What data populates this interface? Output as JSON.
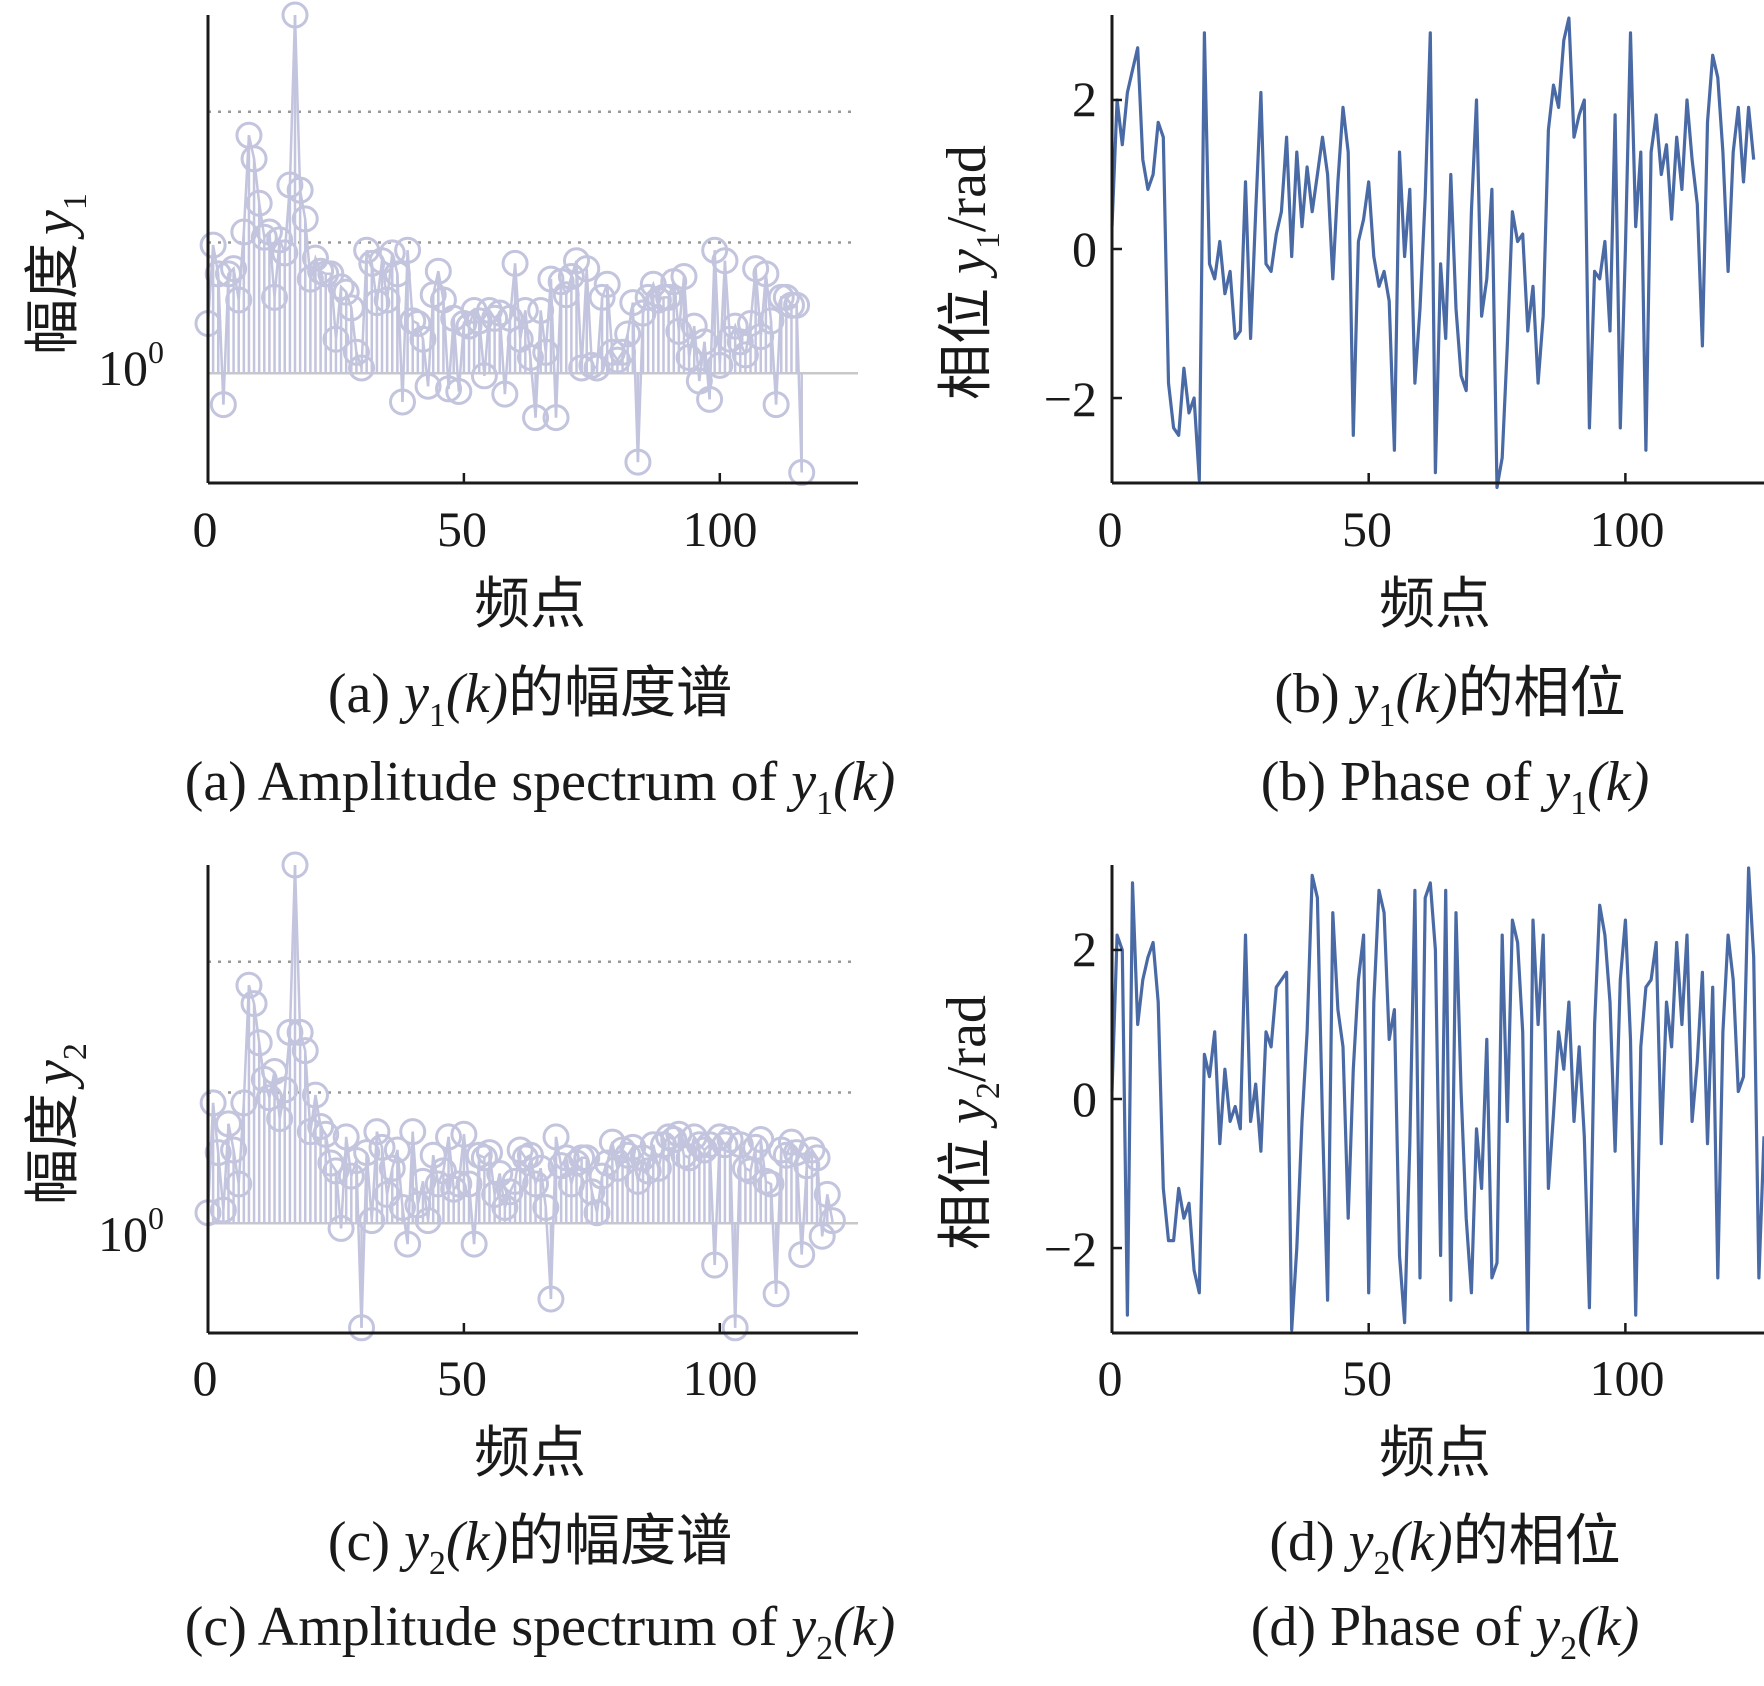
{
  "colors": {
    "axis": "#1a1a1a",
    "stem": "#c3c4dd",
    "marker": "#c3c4dd",
    "phase_line": "#4a6aa5",
    "dotted_grid": "#999999",
    "solid_grid": "#c8c8c8"
  },
  "chart_data": [
    {
      "id": "a",
      "type": "stem",
      "log_y": true,
      "xlabel": "频点",
      "ylabel_main": "幅度",
      "ylabel_var": "y",
      "ylabel_sub": "1",
      "xticks": [
        "0",
        "50",
        "100"
      ],
      "ytick_label": "10",
      "ytick_sup": "0",
      "caption_cn": {
        "prefix": "(a) ",
        "var": "y",
        "sub": "1",
        "arg": "(k)",
        "suffix": "的幅度谱"
      },
      "caption_en": {
        "prefix": "(a) Amplitude spectrum of ",
        "var": "y",
        "sub": "1",
        "arg": "(k)"
      },
      "xlim": [
        0,
        127
      ],
      "ylim_log10": [
        -0.42,
        1.37
      ],
      "values_log10": [
        0.19,
        0.49,
        0.38,
        -0.12,
        0.38,
        0.4,
        0.28,
        0.54,
        0.91,
        0.82,
        0.65,
        0.52,
        0.54,
        0.29,
        0.51,
        0.46,
        0.72,
        1.37,
        0.7,
        0.59,
        0.36,
        0.44,
        0.39,
        0.38,
        0.38,
        0.13,
        0.33,
        0.31,
        0.25,
        0.08,
        0.02,
        0.47,
        0.42,
        0.27,
        0.43,
        0.28,
        0.46,
        0.38,
        -0.11,
        0.47,
        0.2,
        0.19,
        0.13,
        -0.05,
        0.3,
        0.39,
        0.28,
        -0.06,
        0.21,
        -0.07,
        0.19,
        0.18,
        0.24,
        0.2,
        -0.01,
        0.24,
        0.21,
        0.23,
        -0.08,
        0.21,
        0.42,
        0.13,
        0.24,
        0.06,
        -0.17,
        0.24,
        0.08,
        0.36,
        -0.17,
        0.35,
        0.3,
        0.37,
        0.43,
        0.02,
        0.4,
        0.03,
        0.02,
        0.29,
        0.34,
        0.08,
        0.05,
        0.08,
        0.15,
        0.27,
        -0.34,
        0.23,
        0.29,
        0.34,
        0.28,
        0.29,
        0.29,
        0.35,
        0.16,
        0.37,
        0.06,
        0.18,
        -0.03,
        0.12,
        -0.1,
        0.47,
        0.03,
        0.43,
        0.13,
        0.18,
        0.12,
        0.07,
        0.19,
        0.4,
        0.14,
        0.38,
        0.2,
        -0.12,
        0.29,
        0.29,
        0.26,
        0.26,
        -0.38
      ]
    },
    {
      "id": "b",
      "type": "line",
      "xlabel": "频点",
      "ylabel_main": "相位 ",
      "ylabel_var": "y",
      "ylabel_sub": "1",
      "ylabel_unit": "/rad",
      "xticks": [
        "0",
        "50",
        "100"
      ],
      "yticks": [
        2,
        0,
        -2
      ],
      "caption_cn": {
        "prefix": "(b) ",
        "var": "y",
        "sub": "1",
        "arg": "(k)",
        "suffix": "的相位"
      },
      "caption_en": {
        "prefix": "(b) Phase of ",
        "var": "y",
        "sub": "1",
        "arg": "(k)"
      },
      "xlim": [
        0,
        127
      ],
      "ylim": [
        -3.14,
        3.14
      ],
      "values": [
        0.3,
        2.0,
        1.4,
        2.1,
        2.4,
        2.7,
        1.2,
        0.8,
        1.0,
        1.7,
        1.5,
        -1.8,
        -2.4,
        -2.5,
        -1.6,
        -2.2,
        -2.0,
        -3.1,
        2.9,
        -0.2,
        -0.4,
        0.1,
        -0.6,
        -0.3,
        -1.2,
        -1.1,
        0.9,
        -1.2,
        0.5,
        2.1,
        -0.2,
        -0.3,
        0.2,
        0.5,
        1.5,
        -0.1,
        1.3,
        0.3,
        1.1,
        0.5,
        1.0,
        1.5,
        1.0,
        -0.4,
        0.9,
        1.9,
        1.3,
        -2.5,
        0.1,
        0.4,
        0.9,
        -0.1,
        -0.5,
        -0.3,
        -0.7,
        -2.7,
        1.3,
        -0.1,
        0.8,
        -1.8,
        -0.8,
        0.7,
        2.9,
        -3.0,
        -0.2,
        -1.2,
        1.0,
        -0.8,
        -1.7,
        -1.9,
        0.5,
        2.0,
        -0.9,
        -0.4,
        0.8,
        -3.2,
        -2.8,
        -1.3,
        0.5,
        0.1,
        0.2,
        -1.1,
        -0.5,
        -1.8,
        -0.9,
        1.6,
        2.2,
        1.9,
        2.8,
        3.1,
        1.5,
        1.8,
        2.0,
        -2.4,
        -0.3,
        -0.4,
        0.1,
        -1.1,
        1.8,
        -2.4,
        0.0,
        2.9,
        0.3,
        1.3,
        -2.7,
        1.3,
        1.8,
        1.0,
        1.4,
        0.4,
        1.5,
        0.8,
        2.0,
        1.2,
        0.6,
        -1.3,
        1.7,
        2.6,
        2.3,
        1.3,
        -0.3,
        1.3,
        1.9,
        0.9,
        1.9,
        1.2
      ]
    },
    {
      "id": "c",
      "type": "stem",
      "log_y": true,
      "xlabel": "频点",
      "ylabel_main": "幅度",
      "ylabel_var": "y",
      "ylabel_sub": "2",
      "xticks": [
        "0",
        "50",
        "100"
      ],
      "ytick_label": "10",
      "ytick_sup": "0",
      "caption_cn": {
        "prefix": "(c) ",
        "var": "y",
        "sub": "2",
        "arg": "(k)",
        "suffix": "的幅度谱"
      },
      "caption_en": {
        "prefix": "(c) Amplitude spectrum of ",
        "var": "y",
        "sub": "2",
        "arg": "(k)"
      },
      "xlim": [
        0,
        127
      ],
      "ylim_log10": [
        -0.42,
        1.37
      ],
      "values_log10": [
        0.04,
        0.46,
        0.27,
        0.05,
        0.38,
        0.28,
        0.15,
        0.46,
        0.91,
        0.84,
        0.69,
        0.55,
        0.48,
        0.58,
        0.4,
        0.51,
        0.73,
        1.37,
        0.73,
        0.66,
        0.35,
        0.49,
        0.37,
        0.34,
        0.23,
        0.2,
        -0.02,
        0.33,
        0.18,
        0.24,
        -0.4,
        0.27,
        0.01,
        0.35,
        0.29,
        0.11,
        0.21,
        0.28,
        0.06,
        -0.08,
        0.35,
        0.07,
        0.16,
        0.01,
        0.26,
        0.15,
        0.2,
        0.33,
        0.13,
        0.15,
        0.34,
        0.15,
        -0.08,
        0.26,
        0.25,
        0.27,
        0.11,
        0.19,
        0.06,
        0.12,
        0.16,
        0.28,
        0.25,
        0.26,
        0.15,
        0.21,
        0.06,
        -0.29,
        0.33,
        0.22,
        0.25,
        0.15,
        0.23,
        0.25,
        0.25,
        0.12,
        0.04,
        0.18,
        0.23,
        0.31,
        0.21,
        0.28,
        0.26,
        0.29,
        0.16,
        0.25,
        0.2,
        0.3,
        0.21,
        0.3,
        0.33,
        0.32,
        0.34,
        0.26,
        0.25,
        0.33,
        0.3,
        0.28,
        0.3,
        -0.16,
        0.33,
        0.3,
        0.32,
        -0.4,
        0.3,
        0.21,
        0.2,
        0.29,
        0.32,
        0.16,
        0.15,
        -0.27,
        0.28,
        0.26,
        0.31,
        0.27,
        -0.12,
        0.22,
        0.28,
        0.25,
        -0.05,
        0.11,
        0.01
      ]
    },
    {
      "id": "d",
      "type": "line",
      "xlabel": "频点",
      "ylabel_main": "相位 ",
      "ylabel_var": "y",
      "ylabel_sub": "2",
      "ylabel_unit": "/rad",
      "xticks": [
        "0",
        "50",
        "100"
      ],
      "yticks": [
        2,
        0,
        -2
      ],
      "caption_cn": {
        "prefix": "(d) ",
        "var": "y",
        "sub": "2",
        "arg": "(k)",
        "suffix": "的相位"
      },
      "caption_en": {
        "prefix": "(d) Phase of ",
        "var": "y",
        "sub": "2",
        "arg": "(k)"
      },
      "xlim": [
        0,
        127
      ],
      "ylim": [
        -3.14,
        3.14
      ],
      "values": [
        0.1,
        2.2,
        2.0,
        -2.9,
        2.9,
        1.0,
        1.6,
        1.9,
        2.1,
        1.3,
        -1.2,
        -1.9,
        -1.9,
        -1.2,
        -1.6,
        -1.4,
        -2.3,
        -2.6,
        0.6,
        0.3,
        0.9,
        -0.6,
        0.4,
        -0.3,
        -0.1,
        -0.4,
        2.2,
        -0.3,
        0.2,
        -0.7,
        0.9,
        0.7,
        1.5,
        1.6,
        1.7,
        -3.1,
        -2.0,
        -0.3,
        0.9,
        3.0,
        2.7,
        -0.3,
        -2.7,
        2.5,
        1.2,
        0.7,
        -1.6,
        0.4,
        1.6,
        2.2,
        -2.6,
        1.3,
        2.8,
        2.5,
        0.8,
        1.2,
        -2.1,
        -3.0,
        -0.6,
        2.8,
        -2.4,
        2.7,
        2.9,
        2.0,
        -2.1,
        2.8,
        -2.7,
        2.5,
        0.1,
        -1.6,
        -2.6,
        -0.4,
        -1.2,
        0.8,
        -2.4,
        -2.2,
        2.2,
        -0.3,
        2.4,
        2.1,
        0.9,
        -3.1,
        2.4,
        1.0,
        2.2,
        -1.2,
        -0.2,
        0.9,
        0.4,
        1.3,
        -0.3,
        0.7,
        -0.5,
        -2.8,
        1.0,
        2.6,
        2.2,
        1.3,
        -0.7,
        1.6,
        2.4,
        0.8,
        -2.9,
        0.7,
        1.5,
        1.6,
        2.1,
        -0.6,
        1.3,
        0.7,
        2.1,
        1.0,
        2.2,
        -0.3,
        0.5,
        1.7,
        -0.6,
        1.5,
        -2.4,
        0.9,
        2.2,
        1.6,
        0.1,
        0.3,
        3.1,
        1.9,
        -2.4,
        -0.5
      ]
    }
  ]
}
